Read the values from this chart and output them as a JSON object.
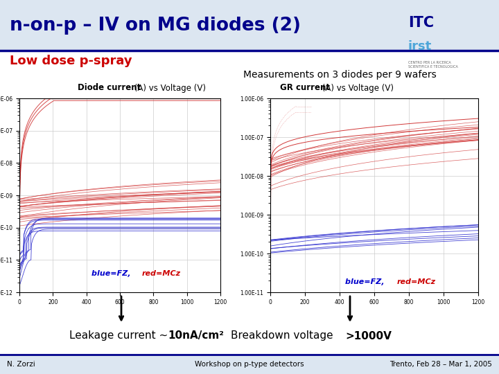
{
  "title": "n-on-p – IV on MG diodes (2)",
  "subtitle_red": "Low dose p-spray",
  "subtitle_main": "Measurements on 3 diodes per 9 wafers",
  "left_plot_title_bold": "Diode current",
  "left_plot_title_normal": " (A) vs Voltage (V)",
  "right_plot_title_bold": "GR current",
  "right_plot_title_normal": " (A) vs Voltage (V)",
  "legend_blue": "blue=FZ, ",
  "legend_red": "red=MCz",
  "bottom_left_normal": "Leakage current ~ ",
  "bottom_left_bold": "10nA/cm²",
  "bottom_right_normal": "Breakdown voltage ",
  "bottom_right_bold": ">1000V",
  "footer_left": "N. Zorzi",
  "footer_center": "Workshop on p-type detectors",
  "footer_right": "Trento, Feb 28 – Mar 1, 2005",
  "slide_bg": "#ffffff",
  "title_bar_bg": "#dce6f1",
  "title_color": "#00008B",
  "red_color": "#cc0000",
  "blue_color": "#0000cc",
  "plot_bg": "#ffffff",
  "grid_color": "#cccccc",
  "footer_bar_bg": "#dce6f1"
}
